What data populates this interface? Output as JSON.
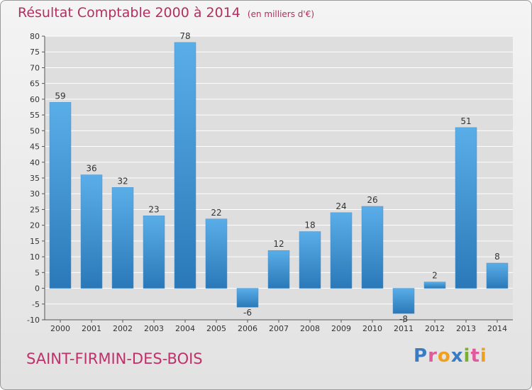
{
  "title": "Résultat Comptable 2000 à 2014",
  "subtitle": "(en milliers d'€)",
  "town": "SAINT-FIRMIN-DES-BOIS",
  "logo": {
    "text": "Proxiti",
    "letters": [
      {
        "ch": "P",
        "color": "#3a7cc4"
      },
      {
        "ch": "r",
        "color": "#e05b9b"
      },
      {
        "ch": "o",
        "color": "#f0a020"
      },
      {
        "ch": "x",
        "color": "#3a7cc4"
      },
      {
        "ch": "i",
        "color": "#7ab030"
      },
      {
        "ch": "t",
        "color": "#e05b9b"
      },
      {
        "ch": "i",
        "color": "#f0a020"
      }
    ]
  },
  "colors": {
    "bar_top": "#5aaee8",
    "bar_bottom": "#2a78b8",
    "title": "#b03060",
    "grid": "#ffffff"
  },
  "chart_data": {
    "type": "bar",
    "categories": [
      "2000",
      "2001",
      "2002",
      "2003",
      "2004",
      "2005",
      "2006",
      "2007",
      "2008",
      "2009",
      "2010",
      "2011",
      "2012",
      "2013",
      "2014"
    ],
    "values": [
      59,
      36,
      32,
      23,
      78,
      22,
      -6,
      12,
      18,
      24,
      26,
      -8,
      2,
      51,
      8
    ],
    "data_labels": [
      "59",
      "36",
      "32",
      "23",
      "78",
      "22",
      "-6",
      "12",
      "18",
      "24",
      "26",
      "-8",
      "2",
      "51",
      "8"
    ],
    "yticks": [
      -10,
      -5,
      0,
      5,
      10,
      15,
      20,
      25,
      30,
      35,
      40,
      45,
      50,
      55,
      60,
      65,
      70,
      75,
      80
    ],
    "ylim": [
      -10,
      80
    ],
    "grid": true,
    "legend": "none"
  }
}
